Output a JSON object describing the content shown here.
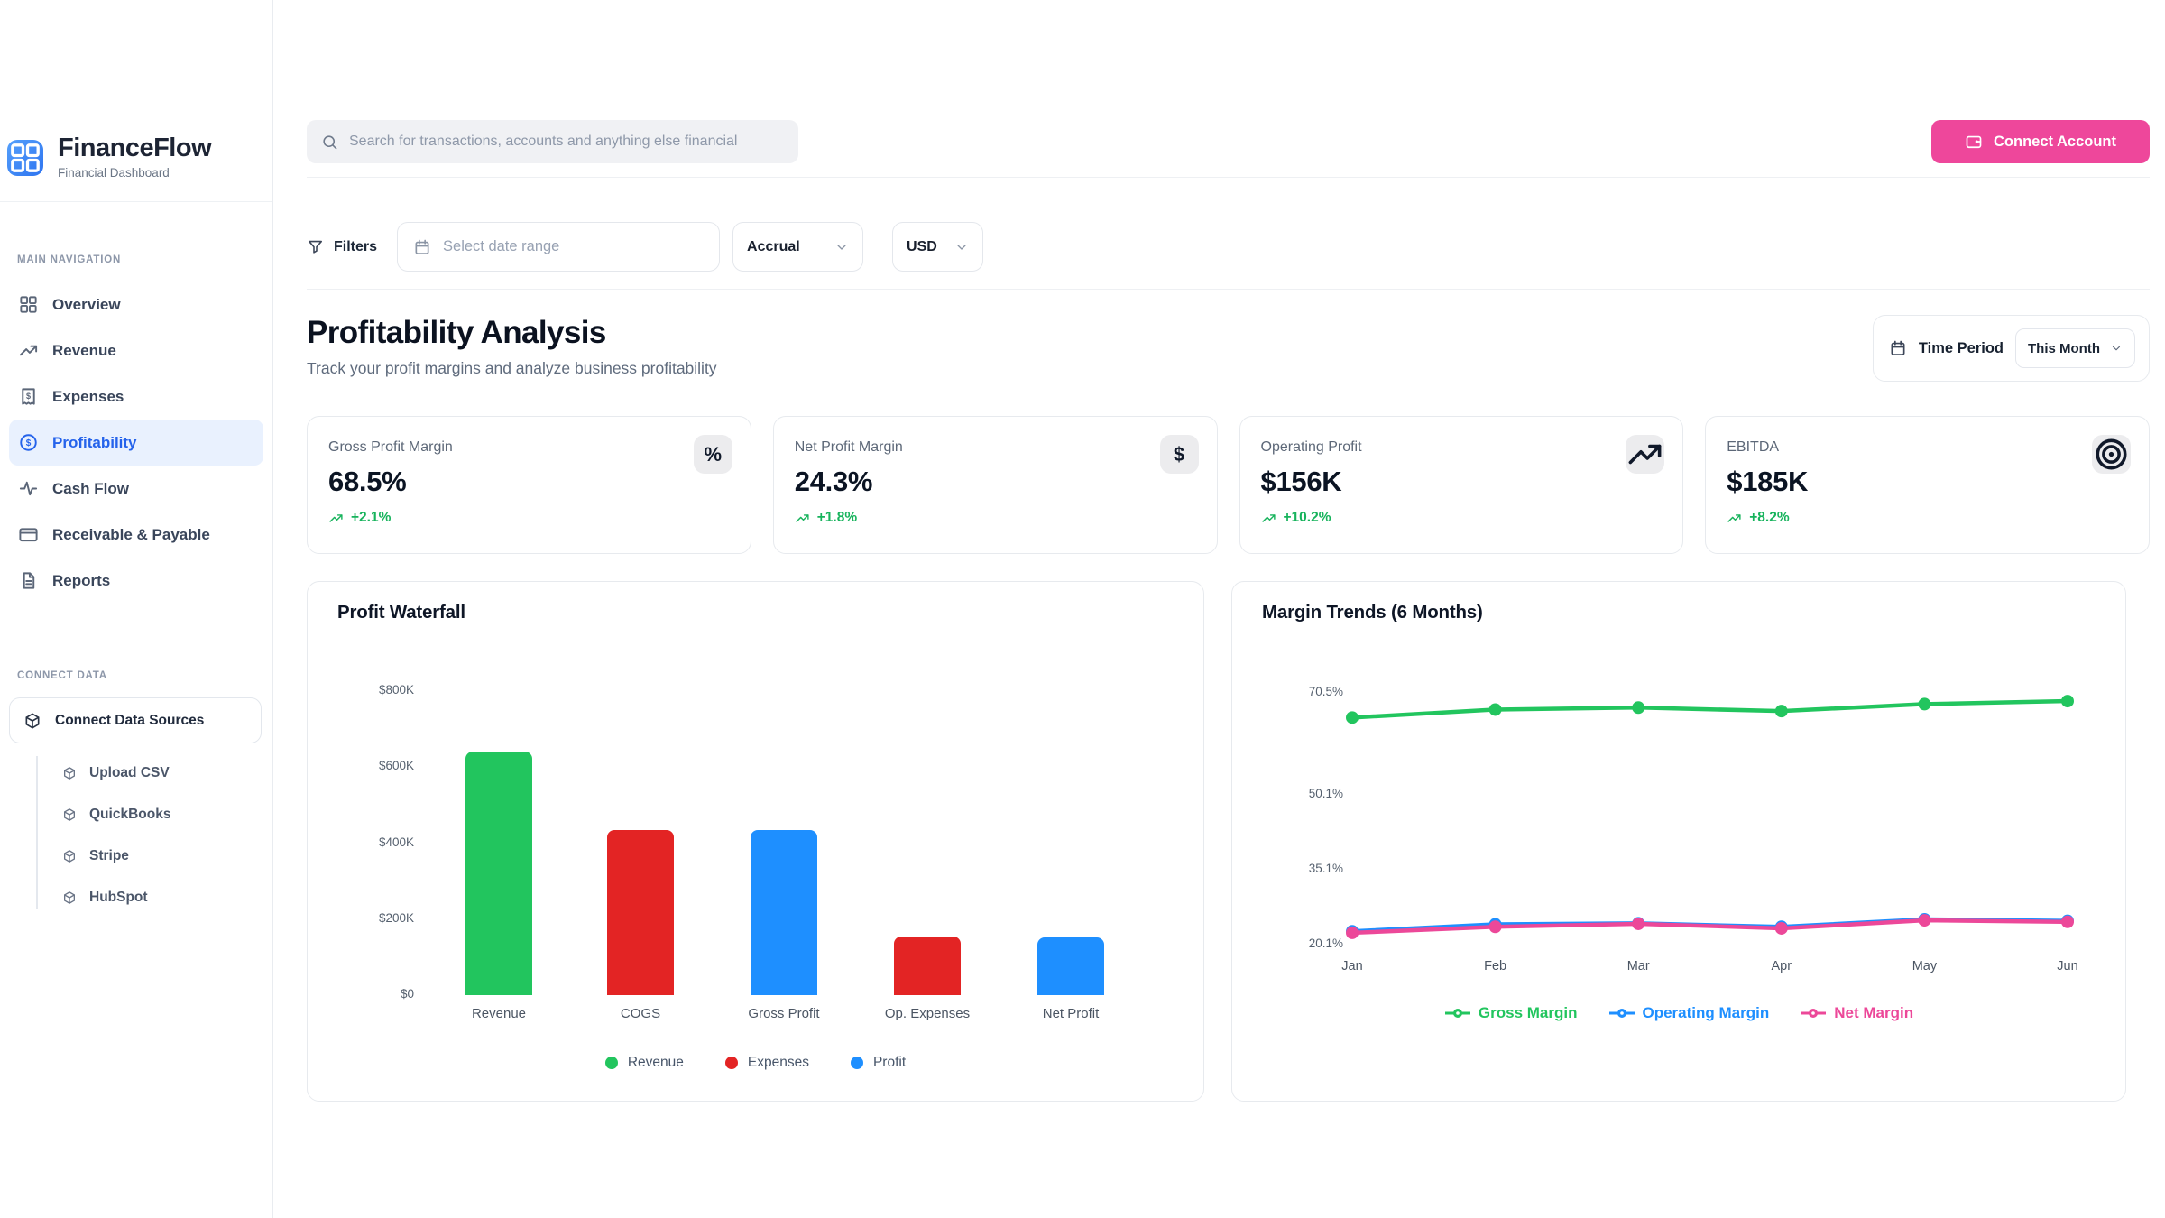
{
  "sidebar": {
    "brand": {
      "name": "FinanceFlow",
      "subtitle": "Financial Dashboard"
    },
    "nav_section_label": "MAIN NAVIGATION",
    "nav": [
      {
        "label": "Overview",
        "icon": "grid"
      },
      {
        "label": "Revenue",
        "icon": "trending-up"
      },
      {
        "label": "Expenses",
        "icon": "receipt"
      },
      {
        "label": "Profitability",
        "icon": "dollar-circle"
      },
      {
        "label": "Cash Flow",
        "icon": "activity"
      },
      {
        "label": "Receivable & Payable",
        "icon": "credit-card"
      },
      {
        "label": "Reports",
        "icon": "file"
      }
    ],
    "active_nav": "Profitability",
    "connect_section_label": "CONNECT DATA",
    "connect_button_label": "Connect Data Sources",
    "sources": [
      {
        "label": "Upload CSV",
        "icon": "cube"
      },
      {
        "label": "QuickBooks",
        "icon": "cube"
      },
      {
        "label": "Stripe",
        "icon": "cube"
      },
      {
        "label": "HubSpot",
        "icon": "cube"
      }
    ]
  },
  "header": {
    "search_placeholder": "Search for transactions, accounts and anything else financial",
    "connect_account_label": "Connect Account"
  },
  "filters": {
    "filters_label": "Filters",
    "date_placeholder": "Select date range",
    "basis_value": "Accrual",
    "currency_value": "USD"
  },
  "page": {
    "title": "Profitability Analysis",
    "subtitle": "Track your profit margins and analyze business profitability",
    "time_period_label": "Time Period",
    "time_period_value": "This Month"
  },
  "kpis": [
    {
      "label": "Gross Profit Margin",
      "value": "68.5%",
      "delta": "+2.1%",
      "icon": "percent"
    },
    {
      "label": "Net Profit Margin",
      "value": "24.3%",
      "delta": "+1.8%",
      "icon": "dollar"
    },
    {
      "label": "Operating Profit",
      "value": "$156K",
      "delta": "+10.2%",
      "icon": "trending-up"
    },
    {
      "label": "EBITDA",
      "value": "$185K",
      "delta": "+8.2%",
      "icon": "target"
    }
  ],
  "colors": {
    "accent_pink": "#ee479b",
    "active_blue": "#2563eb",
    "positive_green": "#17b35c",
    "bar_green": "#22c55e",
    "bar_red": "#e32424",
    "bar_blue": "#1e8fff"
  },
  "chart_data": [
    {
      "type": "bar",
      "title": "Profit Waterfall",
      "categories": [
        "Revenue",
        "COGS",
        "Gross Profit",
        "Op. Expenses",
        "Net Profit"
      ],
      "values": [
        640000,
        435000,
        435000,
        155000,
        152000
      ],
      "bar_colors": [
        "#22c55e",
        "#e32424",
        "#1e8fff",
        "#e32424",
        "#1e8fff"
      ],
      "ytick_labels": [
        "$800K",
        "$600K",
        "$400K",
        "$200K",
        "$0"
      ],
      "ytick_values": [
        800000,
        600000,
        400000,
        200000,
        0
      ],
      "ylim": [
        0,
        800000
      ],
      "grid": false,
      "legend_position": "bottom",
      "legend": [
        {
          "label": "Revenue",
          "color": "#22c55e"
        },
        {
          "label": "Expenses",
          "color": "#e32424"
        },
        {
          "label": "Profit",
          "color": "#1e8fff"
        }
      ]
    },
    {
      "type": "line",
      "title": "Margin Trends (6 Months)",
      "x": [
        "Jan",
        "Feb",
        "Mar",
        "Apr",
        "May",
        "Jun"
      ],
      "series": [
        {
          "name": "Gross Margin",
          "color": "#22c55e",
          "values": [
            65.2,
            66.8,
            67.2,
            66.5,
            67.9,
            68.5
          ]
        },
        {
          "name": "Operating Margin",
          "color": "#1e8fff",
          "values": [
            22.4,
            23.8,
            24.0,
            23.3,
            24.8,
            24.5
          ]
        },
        {
          "name": "Net Margin",
          "color": "#ec4899",
          "values": [
            22.1,
            23.3,
            23.9,
            23.0,
            24.6,
            24.3
          ]
        }
      ],
      "ytick_labels": [
        "70.5%",
        "50.1%",
        "35.1%",
        "20.1%"
      ],
      "ytick_values": [
        70.5,
        50.1,
        35.1,
        20.1
      ],
      "ylim": [
        20.1,
        70.5
      ],
      "grid": false,
      "legend_position": "bottom"
    }
  ]
}
